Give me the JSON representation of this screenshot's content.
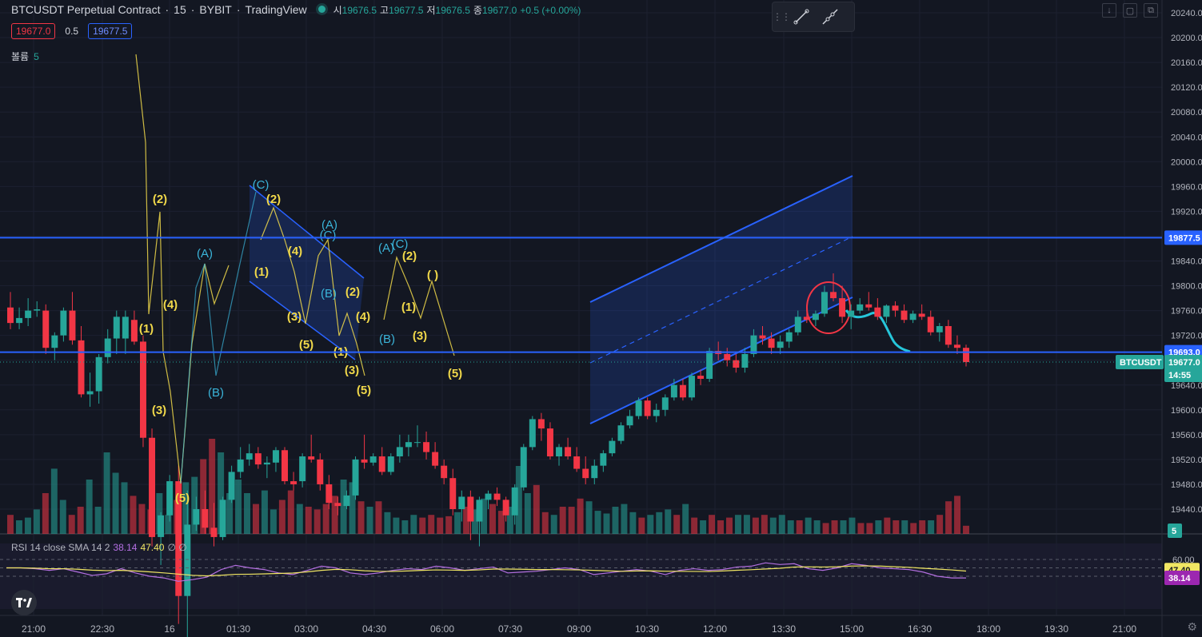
{
  "header": {
    "symbol": "BTCUSDT Perpetual Contract",
    "interval": "15",
    "exchange": "BYBIT",
    "source": "TradingView",
    "ohlc": {
      "open_label": "시",
      "open": "19676.5",
      "high_label": "고",
      "high": "19677.5",
      "low_label": "저",
      "low": "19676.5",
      "close_label": "종",
      "close": "19677.0",
      "change": "+0.5 (+0.00%)"
    },
    "sell_price": "19677.0",
    "spread": "0.5",
    "buy_price": "19677.5"
  },
  "volume_pane": {
    "label": "볼륨",
    "value": "5"
  },
  "rsi_pane": {
    "label": "RSI 14 close SMA 14 2",
    "rsi_value": "38.14",
    "sma_value": "47.40",
    "extra": "∅ ∅"
  },
  "colors": {
    "up": "#26a69a",
    "down": "#f23645",
    "background": "#131722",
    "hline": "#2962ff",
    "wave_yellow": "#f0d84a",
    "wave_cyan": "#3ab4d9",
    "rsi": "#b36fe0",
    "rsi_sma": "#f0e663"
  },
  "icons": [
    "trendline-tool-icon",
    "extended-line-tool-icon",
    "drag-grip-icon",
    "tradingview-logo-icon",
    "settings-gear-icon"
  ],
  "chart_data": {
    "type": "candlestick",
    "price_axis": {
      "ticks": [
        "20240.00",
        "20200.00",
        "20160.00",
        "20120.00",
        "20080.00",
        "20040.00",
        "20000.00",
        "19960.00",
        "19920.00",
        "19880.00",
        "19840.00",
        "19800.00",
        "19760.00",
        "19720.00",
        "19680.00",
        "19640.00",
        "19600.00",
        "19560.00",
        "19520.00",
        "19480.00",
        "19440.00"
      ],
      "ylim": [
        19400,
        20240
      ]
    },
    "time_axis": {
      "ticks": [
        "21:00",
        "22:30",
        "16",
        "01:30",
        "03:00",
        "04:30",
        "06:00",
        "07:30",
        "09:00",
        "10:30",
        "12:00",
        "13:30",
        "15:00",
        "16:30",
        "18:00",
        "19:30",
        "21:00"
      ]
    },
    "price_labels": [
      {
        "text": "19877.5",
        "kind": "line"
      },
      {
        "text": "19693.0",
        "kind": "line"
      },
      {
        "text": "19677.0",
        "kind": "last"
      },
      {
        "text": "14:55",
        "kind": "countdown"
      },
      {
        "text": "BTCUSDT",
        "kind": "symbol"
      }
    ],
    "horizontal_lines": [
      19877.5,
      19693.0
    ],
    "last_price": 19677.0,
    "candles": [
      [
        19765,
        19790,
        19730,
        19740
      ],
      [
        19740,
        19765,
        19730,
        19748
      ],
      [
        19748,
        19780,
        19735,
        19760
      ],
      [
        19760,
        19775,
        19750,
        19762
      ],
      [
        19760,
        19770,
        19690,
        19700
      ],
      [
        19700,
        19725,
        19680,
        19720
      ],
      [
        19720,
        19765,
        19710,
        19760
      ],
      [
        19760,
        19790,
        19705,
        19712
      ],
      [
        19712,
        19735,
        19620,
        19625
      ],
      [
        19625,
        19660,
        19605,
        19630
      ],
      [
        19630,
        19690,
        19610,
        19685
      ],
      [
        19685,
        19730,
        19675,
        19715
      ],
      [
        19715,
        19760,
        19690,
        19750
      ],
      [
        19715,
        19760,
        19690,
        19750
      ],
      [
        19745,
        19760,
        19705,
        19710
      ],
      [
        19710,
        19720,
        19540,
        19555
      ],
      [
        19555,
        19570,
        19380,
        19395
      ],
      [
        19395,
        19435,
        19350,
        19430
      ],
      [
        19430,
        19495,
        19420,
        19485
      ],
      [
        19485,
        19510,
        19255,
        19300
      ],
      [
        19300,
        19470,
        19200,
        19415
      ],
      [
        19415,
        19460,
        19405,
        19440
      ],
      [
        19440,
        19470,
        19400,
        19410
      ],
      [
        19410,
        19450,
        19380,
        19395
      ],
      [
        19395,
        19460,
        19390,
        19455
      ],
      [
        19455,
        19510,
        19450,
        19500
      ],
      [
        19500,
        19540,
        19490,
        19520
      ],
      [
        19520,
        19545,
        19510,
        19530
      ],
      [
        19530,
        19540,
        19505,
        19512
      ],
      [
        19512,
        19525,
        19490,
        19515
      ],
      [
        19515,
        19540,
        19500,
        19535
      ],
      [
        19535,
        19540,
        19480,
        19485
      ],
      [
        19485,
        19500,
        19470,
        19480
      ],
      [
        19485,
        19530,
        19475,
        19525
      ],
      [
        19525,
        19560,
        19515,
        19520
      ],
      [
        19520,
        19530,
        19470,
        19480
      ],
      [
        19480,
        19495,
        19440,
        19450
      ],
      [
        19450,
        19460,
        19430,
        19445
      ],
      [
        19445,
        19470,
        19440,
        19462
      ],
      [
        19462,
        19525,
        19455,
        19520
      ],
      [
        19520,
        19560,
        19505,
        19515
      ],
      [
        19515,
        19530,
        19510,
        19525
      ],
      [
        19525,
        19540,
        19495,
        19500
      ],
      [
        19500,
        19530,
        19495,
        19525
      ],
      [
        19525,
        19560,
        19515,
        19540
      ],
      [
        19540,
        19560,
        19525,
        19548
      ],
      [
        19548,
        19575,
        19540,
        19548
      ],
      [
        19548,
        19565,
        19520,
        19532
      ],
      [
        19532,
        19548,
        19505,
        19510
      ],
      [
        19510,
        19520,
        19480,
        19490
      ],
      [
        19490,
        19505,
        19430,
        19440
      ],
      [
        19440,
        19470,
        19420,
        19460
      ],
      [
        19460,
        19470,
        19390,
        19420
      ],
      [
        19420,
        19460,
        19380,
        19455
      ],
      [
        19455,
        19470,
        19440,
        19465
      ],
      [
        19465,
        19475,
        19445,
        19455
      ],
      [
        19455,
        19460,
        19420,
        19430
      ],
      [
        19430,
        19480,
        19415,
        19475
      ],
      [
        19475,
        19545,
        19470,
        19540
      ],
      [
        19540,
        19590,
        19535,
        19585
      ],
      [
        19585,
        19595,
        19550,
        19570
      ],
      [
        19570,
        19580,
        19520,
        19525
      ],
      [
        19525,
        19545,
        19510,
        19540
      ],
      [
        19540,
        19555,
        19520,
        19525
      ],
      [
        19525,
        19540,
        19500,
        19505
      ],
      [
        19505,
        19525,
        19480,
        19490
      ],
      [
        19490,
        19520,
        19480,
        19510
      ],
      [
        19510,
        19535,
        19500,
        19530
      ],
      [
        19530,
        19555,
        19525,
        19550
      ],
      [
        19550,
        19580,
        19545,
        19575
      ],
      [
        19575,
        19600,
        19570,
        19590
      ],
      [
        19590,
        19620,
        19585,
        19615
      ],
      [
        19615,
        19620,
        19585,
        19590
      ],
      [
        19590,
        19610,
        19580,
        19600
      ],
      [
        19600,
        19625,
        19590,
        19620
      ],
      [
        19620,
        19650,
        19615,
        19640
      ],
      [
        19640,
        19650,
        19615,
        19620
      ],
      [
        19620,
        19660,
        19615,
        19655
      ],
      [
        19655,
        19665,
        19640,
        19650
      ],
      [
        19650,
        19700,
        19645,
        19695
      ],
      [
        19695,
        19710,
        19680,
        19690
      ],
      [
        19690,
        19700,
        19670,
        19680
      ],
      [
        19680,
        19690,
        19660,
        19668
      ],
      [
        19668,
        19700,
        19660,
        19690
      ],
      [
        19690,
        19730,
        19685,
        19720
      ],
      [
        19720,
        19735,
        19705,
        19715
      ],
      [
        19715,
        19725,
        19690,
        19700
      ],
      [
        19700,
        19720,
        19690,
        19710
      ],
      [
        19710,
        19730,
        19700,
        19725
      ],
      [
        19725,
        19760,
        19720,
        19750
      ],
      [
        19750,
        19770,
        19740,
        19745
      ],
      [
        19745,
        19760,
        19735,
        19755
      ],
      [
        19755,
        19800,
        19750,
        19790
      ],
      [
        19790,
        19820,
        19775,
        19780
      ],
      [
        19780,
        19800,
        19740,
        19750
      ],
      [
        19750,
        19770,
        19730,
        19760
      ],
      [
        19760,
        19780,
        19755,
        19770
      ],
      [
        19770,
        19790,
        19760,
        19765
      ],
      [
        19765,
        19780,
        19745,
        19750
      ],
      [
        19750,
        19770,
        19740,
        19768
      ],
      [
        19768,
        19775,
        19750,
        19760
      ],
      [
        19760,
        19770,
        19740,
        19745
      ],
      [
        19745,
        19760,
        19740,
        19755
      ],
      [
        19755,
        19770,
        19745,
        19750
      ],
      [
        19750,
        19760,
        19720,
        19725
      ],
      [
        19725,
        19740,
        19710,
        19735
      ],
      [
        19735,
        19745,
        19700,
        19705
      ],
      [
        19705,
        19720,
        19690,
        19700
      ],
      [
        19700,
        19705,
        19670,
        19677
      ]
    ]
  }
}
